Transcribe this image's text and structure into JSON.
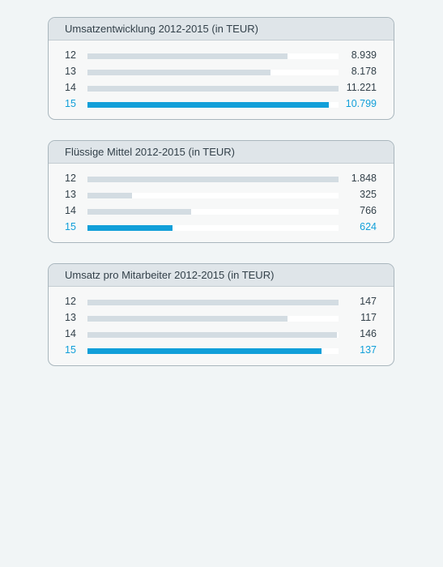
{
  "chart_data": [
    {
      "type": "bar",
      "title": "Umsatzentwicklung 2012-2015 (in TEUR)",
      "categories": [
        "12",
        "13",
        "14",
        "15"
      ],
      "values": [
        8939,
        8178,
        11221,
        10799
      ],
      "value_labels": [
        "8.939",
        "8.178",
        "11.221",
        "10.799"
      ],
      "highlight_index": 3
    },
    {
      "type": "bar",
      "title": "Flüssige Mittel 2012-2015 (in TEUR)",
      "categories": [
        "12",
        "13",
        "14",
        "15"
      ],
      "values": [
        1848,
        325,
        766,
        624
      ],
      "value_labels": [
        "1.848",
        "325",
        "766",
        "624"
      ],
      "highlight_index": 3
    },
    {
      "type": "bar",
      "title": "Umsatz pro Mitarbeiter 2012-2015 (in TEUR)",
      "categories": [
        "12",
        "13",
        "14",
        "15"
      ],
      "values": [
        147,
        117,
        146,
        137
      ],
      "value_labels": [
        "147",
        "117",
        "146",
        "137"
      ],
      "highlight_index": 3
    }
  ],
  "colors": {
    "highlight": "#119fd9",
    "bar": "#d3dce2",
    "track": "#ffffff",
    "header": "#dfe5e9",
    "border": "#a9b6bd"
  }
}
